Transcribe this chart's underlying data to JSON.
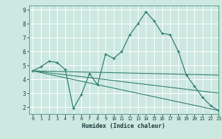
{
  "xlabel": "Humidex (Indice chaleur)",
  "bg_color": "#cce8e0",
  "line_color": "#2e7d6e",
  "grid_color": "#ffffff",
  "xlim": [
    -0.5,
    23
  ],
  "ylim": [
    1.5,
    9.3
  ],
  "xticks": [
    0,
    1,
    2,
    3,
    4,
    5,
    6,
    7,
    8,
    9,
    10,
    11,
    12,
    13,
    14,
    15,
    16,
    17,
    18,
    19,
    20,
    21,
    22,
    23
  ],
  "yticks": [
    2,
    3,
    4,
    5,
    6,
    7,
    8,
    9
  ],
  "line_main": {
    "x": [
      0,
      1,
      2,
      3,
      4,
      5,
      6,
      7,
      8,
      9,
      10,
      11,
      12,
      13,
      14,
      15,
      16,
      17,
      18,
      19,
      20,
      21,
      22,
      23
    ],
    "y": [
      4.6,
      4.9,
      5.3,
      5.2,
      4.7,
      1.9,
      2.9,
      4.4,
      3.6,
      5.8,
      5.5,
      6.0,
      7.2,
      8.0,
      8.85,
      8.2,
      7.3,
      7.2,
      6.0,
      4.3,
      3.5,
      2.7,
      2.1,
      1.75
    ]
  },
  "lines_straight": [
    {
      "x": [
        0,
        23
      ],
      "y": [
        4.6,
        4.3
      ]
    },
    {
      "x": [
        0,
        23
      ],
      "y": [
        4.6,
        3.0
      ]
    },
    {
      "x": [
        0,
        23
      ],
      "y": [
        4.6,
        1.75
      ]
    }
  ]
}
